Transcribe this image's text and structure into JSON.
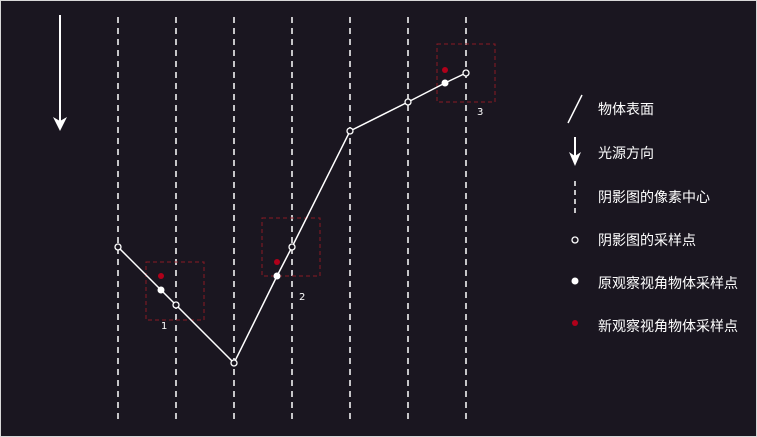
{
  "colors": {
    "background": "#1a1620",
    "border": "#d8d8d8",
    "foreground": "#ffffff",
    "new_sample": "#b0001a",
    "box_border": "#8a1a24"
  },
  "icons": {
    "light": "arrow-down-icon"
  },
  "boxes": [
    {
      "label": "1"
    },
    {
      "label": "2"
    },
    {
      "label": "3"
    }
  ],
  "legend": [
    {
      "key": "surface",
      "icon": "slash-line-icon",
      "label": "物体表面"
    },
    {
      "key": "light",
      "icon": "arrow-down-icon",
      "label": "光源方向"
    },
    {
      "key": "pixel_center",
      "icon": "dashed-vertical-line-icon",
      "label": "阴影图的像素中心"
    },
    {
      "key": "shadow_sample",
      "icon": "hollow-dot-icon",
      "label": "阴影图的采样点"
    },
    {
      "key": "orig_sample",
      "icon": "white-dot-icon",
      "label": "原观察视角物体采样点"
    },
    {
      "key": "new_sample",
      "icon": "red-dot-icon",
      "label": "新观察视角物体采样点"
    }
  ]
}
